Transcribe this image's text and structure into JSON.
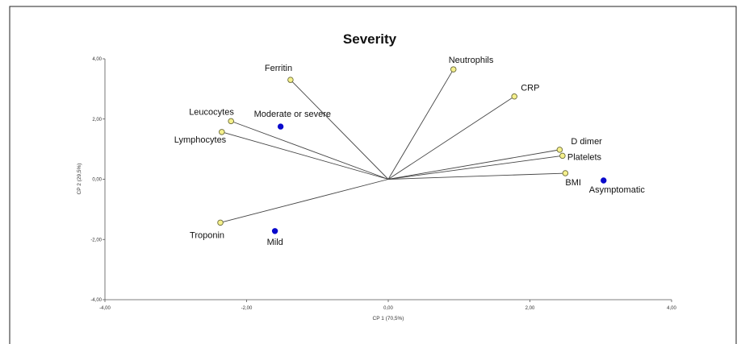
{
  "chart_data": {
    "type": "scatter",
    "title": "Severity",
    "xlabel": "CP 1 (70,5%)",
    "ylabel": "CP 2 (29,5%)",
    "xlim": [
      -4,
      4
    ],
    "ylim": [
      -4,
      4
    ],
    "x_ticks": [
      "-4,00",
      "-2,00",
      "0,00",
      "2,00",
      "4,00"
    ],
    "y_ticks": [
      "-4,00",
      "-2,00",
      "0,00",
      "2,00",
      "4,00"
    ],
    "variables": [
      {
        "name": "Ferritin",
        "x": -1.38,
        "y": 3.3
      },
      {
        "name": "Neutrophils",
        "x": 0.92,
        "y": 3.65
      },
      {
        "name": "CRP",
        "x": 1.78,
        "y": 2.75
      },
      {
        "name": "Leucocytes",
        "x": -2.22,
        "y": 1.93
      },
      {
        "name": "Lymphocytes",
        "x": -2.35,
        "y": 1.57
      },
      {
        "name": "D dimer",
        "x": 2.42,
        "y": 0.98
      },
      {
        "name": "Platelets",
        "x": 2.46,
        "y": 0.78
      },
      {
        "name": "BMI",
        "x": 2.5,
        "y": 0.2
      },
      {
        "name": "Troponin",
        "x": -2.37,
        "y": -1.44
      }
    ],
    "groups": [
      {
        "name": "Moderate or severe",
        "x": -1.52,
        "y": 1.75
      },
      {
        "name": "Mild",
        "x": -1.6,
        "y": -1.72
      },
      {
        "name": "Asymptomatic",
        "x": 3.04,
        "y": -0.04
      }
    ],
    "colors": {
      "variable_fill": "#f5f08c",
      "variable_stroke": "#6b6b3a",
      "group_fill": "#0a0acc",
      "line": "#444444"
    }
  }
}
